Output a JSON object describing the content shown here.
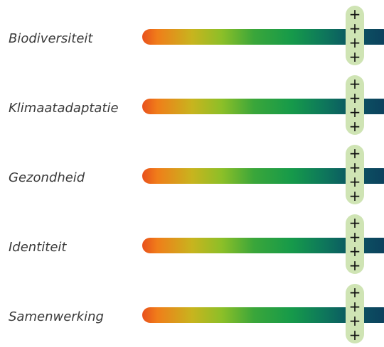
{
  "chart_data": {
    "type": "bar",
    "categories": [
      "Biodiversiteit",
      "Klimaatadaptatie",
      "Gezondheid",
      "Identiteit",
      "Samenwerking"
    ],
    "values": [
      "++++",
      "++++",
      "++++",
      "++++",
      "++++"
    ],
    "scale_colors": [
      "#e8501c",
      "#c8b41e",
      "#3aa63a",
      "#0b5663",
      "#0d3d5c"
    ],
    "marker_color": "#cfe4b4"
  }
}
